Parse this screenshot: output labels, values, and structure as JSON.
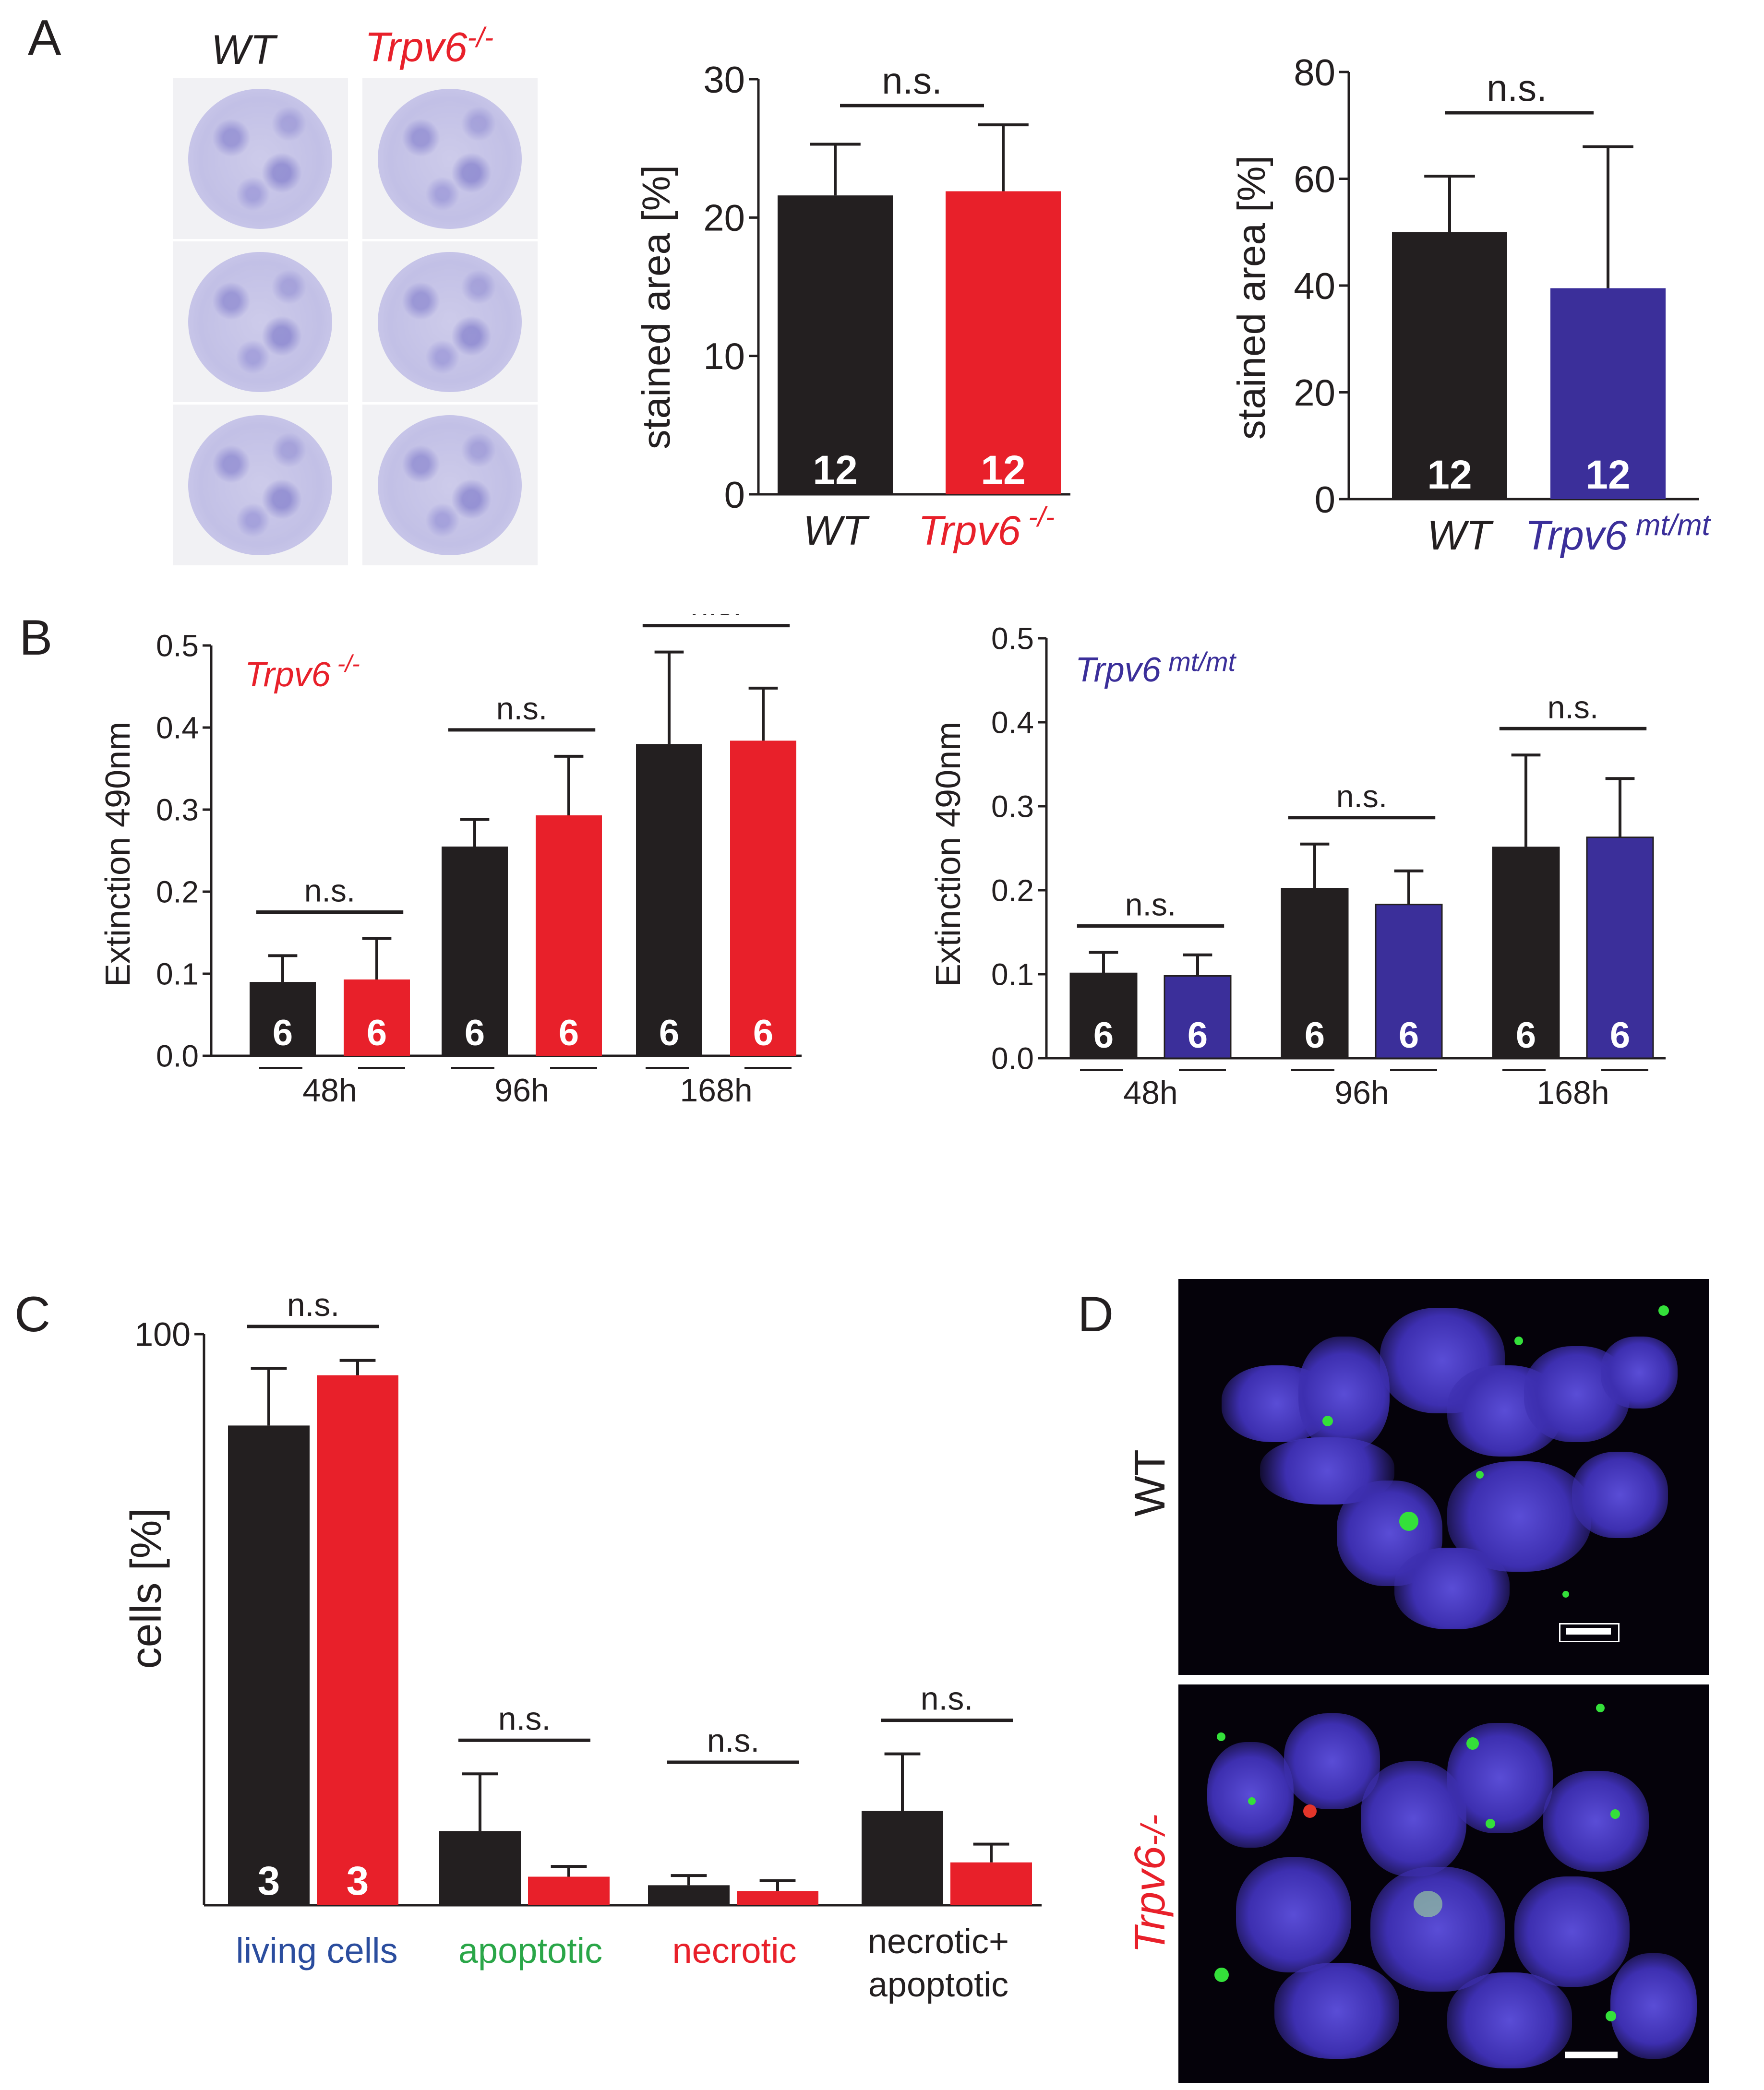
{
  "panels": {
    "A": "A",
    "B": "B",
    "C": "C",
    "D": "D"
  },
  "colors": {
    "wt": "#231f20",
    "ko": "#e8202a",
    "mt": "#3b2f9a",
    "living": "#2b4d9e",
    "apoptotic": "#2aa648",
    "necrotic": "#e8202a",
    "axis": "#231f20"
  },
  "panelA_images": {
    "wt_label": "WT",
    "ko_label": "Trpv6",
    "ko_sup": "-/-"
  },
  "panelD_images": {
    "wt_label": "WT",
    "ko_label": "Trpv6",
    "ko_sup": "-/-"
  },
  "chart_data": [
    {
      "id": "A1",
      "type": "bar",
      "categories": [
        "WT",
        "Trpv6 -/-"
      ],
      "values": [
        21.6,
        21.9
      ],
      "errors": [
        3.7,
        4.8
      ],
      "n": [
        "12",
        "12"
      ],
      "colors": [
        "#231f20",
        "#e8202a"
      ],
      "ylabel": "stained area [%]",
      "ylim": [
        0,
        30
      ],
      "yticks": [
        0,
        10,
        20,
        30
      ],
      "sig": [
        {
          "from": 0,
          "to": 1,
          "label": "n.s."
        }
      ]
    },
    {
      "id": "A2",
      "type": "bar",
      "categories": [
        "WT",
        "Trpv6 mt/mt"
      ],
      "values": [
        50,
        39.5
      ],
      "errors": [
        10.5,
        26.5
      ],
      "n": [
        "12",
        "12"
      ],
      "colors": [
        "#231f20",
        "#3b2f9a"
      ],
      "ylabel": "stained area [%]",
      "ylim": [
        0,
        80
      ],
      "yticks": [
        0,
        20,
        40,
        60,
        80
      ],
      "sig": [
        {
          "from": 0,
          "to": 1,
          "label": "n.s."
        }
      ]
    },
    {
      "id": "B1",
      "type": "bar",
      "legend": "Trpv6 -/-",
      "categories": [
        "48h",
        "96h",
        "168h"
      ],
      "series": [
        {
          "values": [
            0.09,
            0.255,
            0.38
          ],
          "errors": [
            0.032,
            0.033,
            0.112
          ],
          "n": [
            "6",
            "6",
            "6"
          ],
          "color": "#231f20"
        },
        {
          "values": [
            0.093,
            0.293,
            0.384
          ],
          "errors": [
            0.05,
            0.072,
            0.064
          ],
          "n": [
            "6",
            "6",
            "6"
          ],
          "color": "#e8202a"
        }
      ],
      "ylabel": "Extinction 490nm",
      "ylim": [
        0,
        0.5
      ],
      "yticks": [
        "0.0",
        "0.1",
        "0.2",
        "0.3",
        "0.4",
        "0.5"
      ],
      "sig": [
        "n.s.",
        "n.s.",
        "n.s."
      ]
    },
    {
      "id": "B2",
      "type": "bar",
      "legend": "Trpv6 mt/mt",
      "categories": [
        "48h",
        "96h",
        "168h"
      ],
      "series": [
        {
          "values": [
            0.101,
            0.202,
            0.251
          ],
          "errors": [
            0.025,
            0.053,
            0.11
          ],
          "n": [
            "6",
            "6",
            "6"
          ],
          "color": "#231f20"
        },
        {
          "values": [
            0.098,
            0.183,
            0.263
          ],
          "errors": [
            0.025,
            0.04,
            0.07
          ],
          "n": [
            "6",
            "6",
            "6"
          ],
          "color": "#3b2f9a"
        }
      ],
      "ylabel": "Extinction 490nm",
      "ylim": [
        0,
        0.5
      ],
      "yticks": [
        "0.0",
        "0.1",
        "0.2",
        "0.3",
        "0.4",
        "0.5"
      ],
      "sig": [
        "n.s.",
        "n.s.",
        "n.s."
      ]
    },
    {
      "id": "C",
      "type": "bar",
      "categories": [
        "living cells",
        "apoptotic",
        "necrotic",
        "necrotic+ apoptotic"
      ],
      "series": [
        {
          "values": [
            84,
            13,
            3.5,
            16.5
          ],
          "errors": [
            10,
            10,
            1.7,
            10
          ],
          "n": [
            "3",
            "",
            "",
            ""
          ],
          "color": "#231f20"
        },
        {
          "values": [
            92.8,
            5,
            2.5,
            7.5
          ],
          "errors": [
            2.6,
            1.8,
            1.8,
            3.2
          ],
          "n": [
            "3",
            "",
            "",
            ""
          ],
          "color": "#e8202a"
        }
      ],
      "ylabel": "cells [%]",
      "ylim": [
        0,
        100
      ],
      "yticks": [
        100
      ],
      "sig": [
        "n.s.",
        "n.s.",
        "n.s.",
        "n.s."
      ]
    }
  ]
}
